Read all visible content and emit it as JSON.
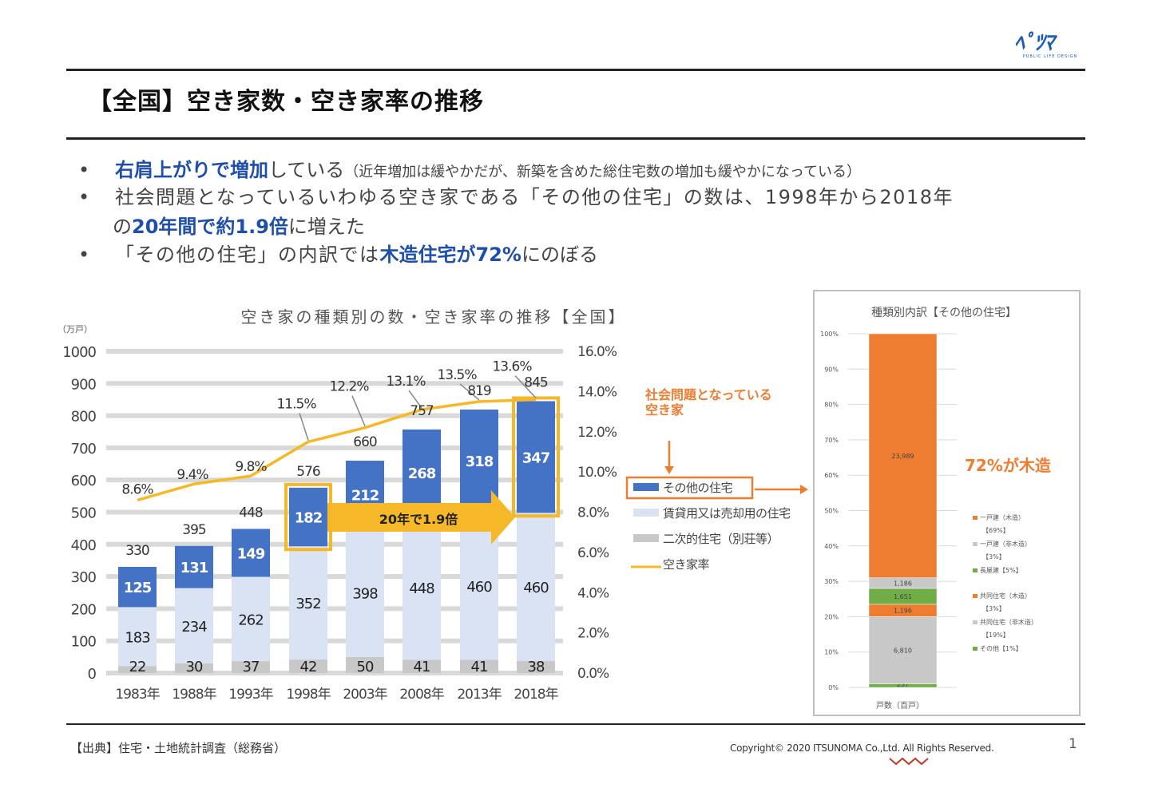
{
  "logo": {
    "main": "ﾍﾟﾂﾏ",
    "sub": "PUBLIC LIFE DESIGN"
  },
  "page_title": "【全国】空き家数・空き家率の推移",
  "bullets": [
    {
      "dot": "•",
      "highlight": "右肩上がりで増加",
      "text": "している",
      "note": "（近年増加は緩やかだが、新築を含めた総住宅数の増加も緩やかになっている）"
    },
    {
      "dot": "•",
      "text_line1": "社会問題となっているいわゆる空き家である「その他の住宅」の数は、1998年から2018年",
      "line2_pre": "の",
      "line2_highlight": "20年間で約1.9倍",
      "line2_post": "に増えた"
    },
    {
      "dot": "•",
      "pre": "「その他の住宅」の内訳では",
      "highlight": "木造住宅が72%",
      "post": "にのぼる"
    }
  ],
  "chart_data": [
    {
      "type": "bar",
      "stacked": true,
      "title": "空き家の種類別の数・空き家率の推移【全国】",
      "ylabel": "（万戸）",
      "ylim": [
        0,
        1000
      ],
      "yticks": [
        "0",
        "100",
        "200",
        "300",
        "400",
        "500",
        "600",
        "700",
        "800",
        "900",
        "1000"
      ],
      "y2lim": [
        0,
        16
      ],
      "y2ticks": [
        "0.0%",
        "2.0%",
        "4.0%",
        "6.0%",
        "8.0%",
        "10.0%",
        "12.0%",
        "14.0%",
        "16.0%"
      ],
      "grid": true,
      "categories": [
        "1983年",
        "1988年",
        "1993年",
        "1998年",
        "2003年",
        "2008年",
        "2013年",
        "2018年"
      ],
      "series": [
        {
          "name": "二次的住宅（別荘等）",
          "color": "#c8c8c8",
          "values": [
            22,
            30,
            37,
            42,
            50,
            41,
            41,
            38
          ]
        },
        {
          "name": "賃貸用又は売却用の住宅",
          "color": "#dae3f3",
          "values": [
            183,
            234,
            262,
            352,
            398,
            448,
            460,
            460
          ]
        },
        {
          "name": "その他の住宅",
          "color": "#4472c4",
          "values": [
            125,
            131,
            149,
            182,
            212,
            268,
            318,
            347
          ]
        }
      ],
      "totals": [
        330,
        395,
        448,
        576,
        660,
        757,
        819,
        845
      ],
      "line_series": {
        "name": "空き家率",
        "color": "#f5b829",
        "axis": "right",
        "values": [
          8.6,
          9.4,
          9.8,
          11.5,
          12.2,
          13.1,
          13.5,
          13.6
        ],
        "labels": [
          "8.6%",
          "9.4%",
          "9.8%",
          "11.5%",
          "12.2%",
          "13.1%",
          "13.5%",
          "13.6%"
        ]
      },
      "annotation_arrow": "20年で1.9倍",
      "legend": {
        "placement": "right",
        "items": [
          "その他の住宅",
          "賃貸用又は売却用の住宅",
          "二次的住宅（別荘等）",
          "空き家率"
        ]
      },
      "callout": "社会問題となっている\n空き家"
    },
    {
      "type": "bar",
      "stacked": true,
      "percent": true,
      "title": "種類別内訳【その他の住宅】",
      "ylim": [
        0,
        100
      ],
      "yticks": [
        "0%",
        "10%",
        "20%",
        "30%",
        "40%",
        "50%",
        "60%",
        "70%",
        "80%",
        "90%",
        "100%"
      ],
      "categories": [
        "戸数（百戸）"
      ],
      "segments": [
        {
          "name": "その他",
          "share": 1,
          "label": "237",
          "color": "#70ad47"
        },
        {
          "name": "共同住宅（非木造）",
          "share": 19,
          "label": "6,810",
          "color": "#c8c8c8"
        },
        {
          "name": "共同住宅（木造）",
          "share": 3.5,
          "label": "1,196",
          "color": "#ed7d31"
        },
        {
          "name": "長屋建",
          "share": 4.5,
          "label": "1,651",
          "color": "#70ad47"
        },
        {
          "name": "一戸建（非木造）",
          "share": 3,
          "label": "1,186",
          "color": "#c8c8c8"
        },
        {
          "name": "一戸建（木造）",
          "share": 69,
          "label": "23,989",
          "color": "#ed7d31"
        }
      ],
      "legend": [
        {
          "label": "一戸建（木造）",
          "pct": "【69%】",
          "color": "#ed7d31"
        },
        {
          "label": "一戸建（非木造）",
          "pct": "【3%】",
          "color": "#c8c8c8"
        },
        {
          "label": "長屋建【5%】",
          "pct": "",
          "color": "#70ad47"
        },
        {
          "label": "共同住宅（木造）",
          "pct": "【3%】",
          "color": "#ed7d31"
        },
        {
          "label": "共同住宅（非木造）",
          "pct": "【19%】",
          "color": "#c8c8c8"
        },
        {
          "label": "その他【1%】",
          "pct": "",
          "color": "#70ad47"
        }
      ],
      "annotation": "72%が木造"
    }
  ],
  "footer": {
    "source": "【出典】住宅・土地統計調査（総務省）",
    "copyright": "Copyright© 2020 ITSUNOMA Co.,Ltd.  All Rights Reserved.",
    "page": "1"
  },
  "colors": {
    "accent_blue": "#1f4fa8",
    "orange": "#ed7d31",
    "yellow": "#f5b829"
  }
}
